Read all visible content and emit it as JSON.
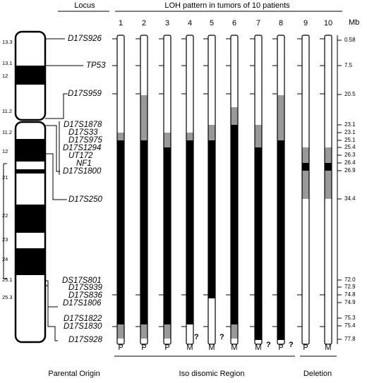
{
  "header": {
    "locus": "Locus",
    "pattern_title": "LOH pattern in tumors of 10 patients",
    "mb_unit": "Mb"
  },
  "columns": [
    "1",
    "2",
    "3",
    "4",
    "5",
    "6",
    "7",
    "8",
    "9",
    "10"
  ],
  "bands": [
    "13.3",
    "13.1",
    "12",
    "11.2",
    "11.2",
    "12",
    "21",
    "22",
    "23",
    "24",
    "25.1",
    "25.3"
  ],
  "loci": [
    {
      "name": "D17S926",
      "mb": "0.58"
    },
    {
      "name": "TP53",
      "mb": "7.5"
    },
    {
      "name": "D17S959",
      "mb": "20.5"
    },
    {
      "name": "D17S1878",
      "mb": "23.1"
    },
    {
      "name": "D17S33",
      "mb": "23.1"
    },
    {
      "name": "D17S975",
      "mb": "25.1"
    },
    {
      "name": "D17S1294",
      "mb": "25.4"
    },
    {
      "name": "UT172",
      "mb": "26.3"
    },
    {
      "name": "NF1",
      "mb": "26.4"
    },
    {
      "name": "D17S1800",
      "mb": "26.9"
    },
    {
      "name": "D17S250",
      "mb": "34.4"
    },
    {
      "name": "DS17S801",
      "mb": "72.0"
    },
    {
      "name": "D17S939",
      "mb": "72.9"
    },
    {
      "name": "D17S836",
      "mb": "74.8"
    },
    {
      "name": "D17S1806",
      "mb": "74.9"
    },
    {
      "name": "D17S1822",
      "mb": "75.3"
    },
    {
      "name": "D17S1830",
      "mb": "75.4"
    },
    {
      "name": "D17S928",
      "mb": "77.8"
    }
  ],
  "origins": [
    "P",
    "P",
    "P",
    "M",
    "M",
    "M",
    "M",
    "P",
    "P",
    "M"
  ],
  "question_marks": [
    "?",
    "?",
    "?",
    "?"
  ],
  "footer": {
    "parental_origin": "Parental Origin",
    "region": "Iso disomic Region",
    "deletion": "Deletion"
  }
}
